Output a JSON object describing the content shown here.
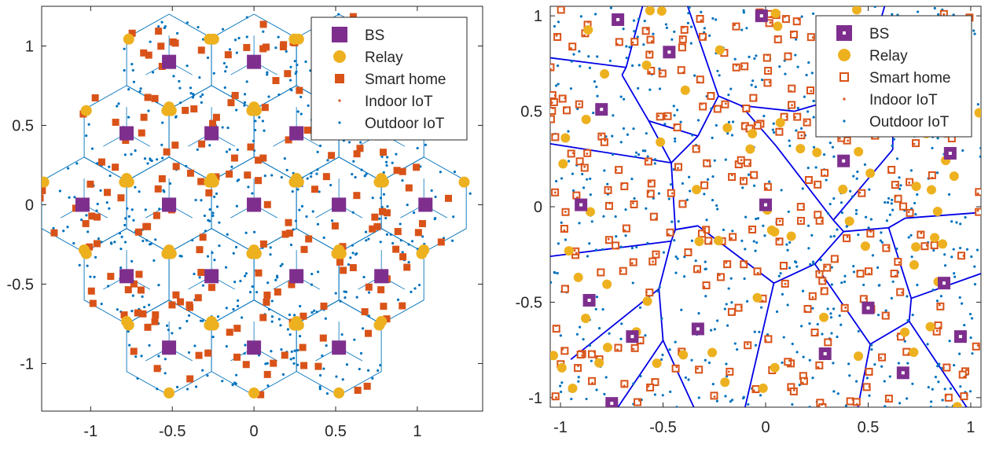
{
  "chart_data": [
    {
      "type": "scatter",
      "title": "",
      "xlabel": "",
      "ylabel": "",
      "xlim": [
        -1.3,
        1.4
      ],
      "ylim": [
        -1.3,
        1.25
      ],
      "xticks": [
        -1,
        -0.5,
        0,
        0.5,
        1
      ],
      "xtick_labels": [
        "-1",
        "-0.5",
        "0",
        "0.5",
        "1"
      ],
      "yticks": [
        -1,
        -0.5,
        0,
        0.5,
        1
      ],
      "ytick_labels": [
        "-1",
        "-0.5",
        "0",
        "0.5",
        "1"
      ],
      "grid": false,
      "legend_position": "top-right",
      "legend": [
        "BS",
        "Relay",
        "Smart home",
        "Indoor IoT",
        "Outdoor IoT"
      ],
      "cells": "hexagonal",
      "series": [
        {
          "name": "BS",
          "marker": "filled-square",
          "color": "#7E2F8E",
          "x": [
            -1.05,
            -0.78,
            -0.52,
            -0.26,
            0,
            0.26,
            0.52,
            0.78,
            1.05,
            -0.78,
            -0.52,
            -0.26,
            0,
            0.26,
            0.52,
            0.78,
            -0.52,
            0,
            0.52,
            -0.52,
            0,
            0.52
          ],
          "y": [
            0,
            0.45,
            0.9,
            0.45,
            0.9,
            0.45,
            0,
            0.45,
            0,
            -0.45,
            0,
            -0.45,
            0,
            -0.45,
            -0.9,
            -0.45,
            -0.9,
            -0.9,
            0.9,
            0,
            0,
            0
          ]
        },
        {
          "name": "Relay",
          "marker": "circle",
          "color": "#EDB120"
        },
        {
          "name": "Smart home",
          "marker": "filled-square",
          "color": "#D95319"
        },
        {
          "name": "Indoor IoT",
          "marker": "dot",
          "color": "#D95319"
        },
        {
          "name": "Outdoor IoT",
          "marker": "dot",
          "color": "#0072BD"
        }
      ]
    },
    {
      "type": "scatter",
      "title": "",
      "xlabel": "",
      "ylabel": "",
      "xlim": [
        -1.05,
        1.05
      ],
      "ylim": [
        -1.05,
        1.05
      ],
      "xticks": [
        -1,
        -0.5,
        0,
        0.5,
        1
      ],
      "xtick_labels": [
        "-1",
        "-0.5",
        "0",
        "0.5",
        "1"
      ],
      "yticks": [
        -1,
        -0.5,
        0,
        0.5,
        1
      ],
      "ytick_labels": [
        "-1",
        "-0.5",
        "0",
        "0.5",
        "1"
      ],
      "grid": false,
      "legend_position": "top-right",
      "legend": [
        "BS",
        "Relay",
        "Smart home",
        "Indoor IoT",
        "Outdoor IoT"
      ],
      "cells": "voronoi",
      "series": [
        {
          "name": "BS",
          "marker": "square-with-dot",
          "color": "#7E2F8E",
          "x": [
            -0.72,
            -0.47,
            -0.8,
            -0.9,
            0,
            0.38,
            0.9,
            -0.86,
            -0.65,
            -0.33,
            0.29,
            0.5,
            0.87,
            0.95,
            0.67,
            -0.75,
            -0.02
          ],
          "y": [
            0.98,
            0.81,
            0.51,
            0.01,
            0.01,
            0.24,
            0.28,
            -0.49,
            -0.68,
            -0.64,
            -0.77,
            -0.53,
            -0.4,
            -0.68,
            -0.87,
            -1.03,
            1.0
          ]
        },
        {
          "name": "Relay",
          "marker": "circle",
          "color": "#EDB120"
        },
        {
          "name": "Smart home",
          "marker": "hollow-square",
          "color": "#D95319"
        },
        {
          "name": "Indoor IoT",
          "marker": "dot",
          "color": "#D95319"
        },
        {
          "name": "Outdoor IoT",
          "marker": "dot",
          "color": "#0072BD"
        }
      ]
    }
  ]
}
